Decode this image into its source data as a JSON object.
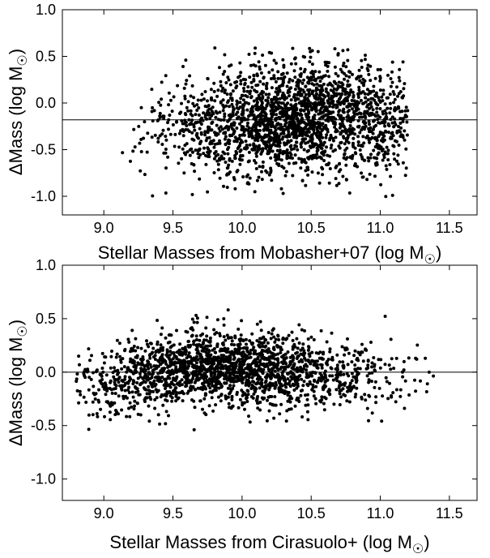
{
  "chart_data": [
    {
      "type": "scatter",
      "xlabel": "Stellar Masses from Mobasher+07 (log M",
      "ylabel": "ΔMass (log M",
      "unit_symbol": "☉",
      "xlim": [
        8.7,
        11.7
      ],
      "ylim": [
        -1.2,
        1.0
      ],
      "xticks": [
        "9.0",
        "9.5",
        "10.0",
        "10.5",
        "11.0",
        "11.5"
      ],
      "yticks": [
        "1.0",
        "0.5",
        "0.0",
        "-0.5",
        "-1.0"
      ],
      "reference_line_y": -0.18,
      "point_color": "#000000",
      "cloud": {
        "n_points": 2200,
        "x_range": [
          9.1,
          11.2
        ],
        "x_center": 10.4,
        "y_range": [
          -1.03,
          0.62
        ],
        "trend": [
          [
            9.2,
            -0.3
          ],
          [
            10.0,
            -0.22
          ],
          [
            10.6,
            -0.12
          ],
          [
            11.1,
            -0.18
          ]
        ],
        "y_scatter": 0.3
      }
    },
    {
      "type": "scatter",
      "xlabel": "Stellar Masses from Cirasuolo+ (log M",
      "ylabel": "ΔMass (log M",
      "unit_symbol": "☉",
      "xlim": [
        8.7,
        11.7
      ],
      "ylim": [
        -1.2,
        1.0
      ],
      "xticks": [
        "9.0",
        "9.5",
        "10.0",
        "10.5",
        "11.0",
        "11.5"
      ],
      "yticks": [
        "1.0",
        "0.5",
        "0.0",
        "-0.5",
        "-1.0"
      ],
      "reference_line_y": 0.0,
      "point_color": "#000000",
      "cloud": {
        "n_points": 2000,
        "x_range": [
          8.8,
          11.4
        ],
        "x_center": 9.9,
        "y_range": [
          -0.55,
          0.62
        ],
        "trend": [
          [
            9.0,
            -0.1
          ],
          [
            9.6,
            0.05
          ],
          [
            10.2,
            0.02
          ],
          [
            10.8,
            -0.05
          ],
          [
            11.3,
            -0.02
          ]
        ],
        "y_scatter": 0.17
      }
    }
  ]
}
